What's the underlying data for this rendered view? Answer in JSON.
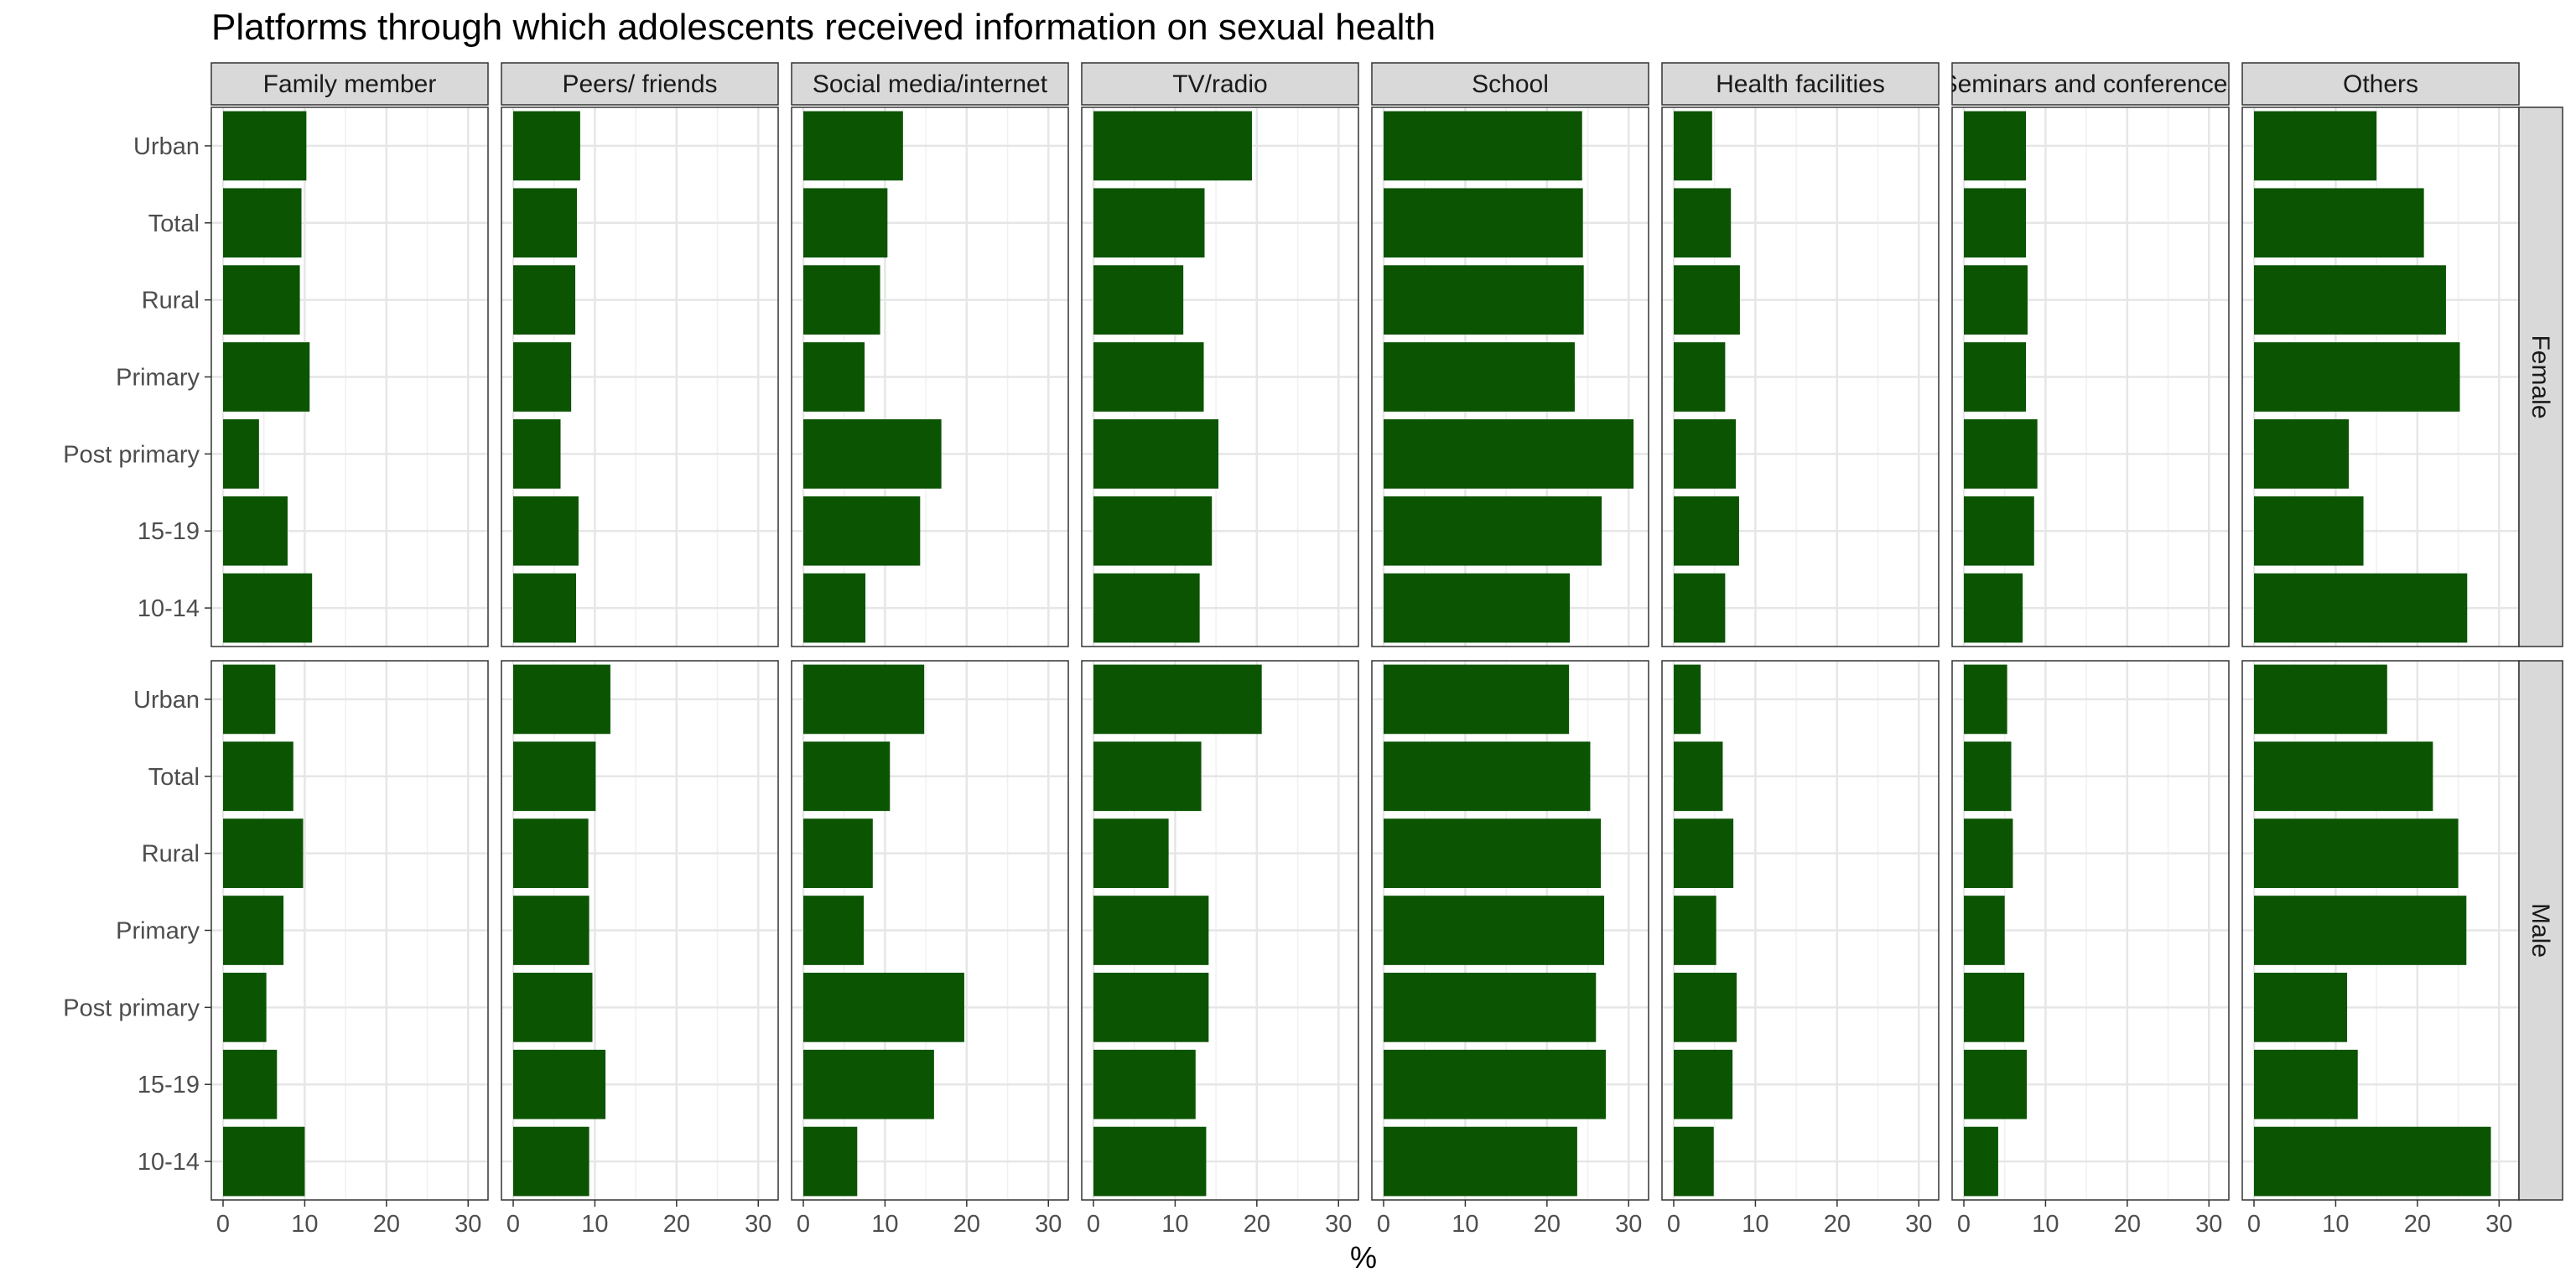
{
  "chart_data": {
    "type": "bar",
    "orientation": "horizontal",
    "title": "Platforms through which adolescents received information on sexual health",
    "xlabel": "%",
    "ylabel": "",
    "xlim": [
      0,
      31
    ],
    "x_ticks": [
      0,
      10,
      20,
      30
    ],
    "grid": true,
    "bar_color": "#0b5402",
    "strip_fill": "#d9d9d9",
    "panels": [
      "Family member",
      "Peers/ friends",
      "Social media/internet",
      "TV/radio",
      "School",
      "Health facilities",
      "Seminars and conferences",
      "Others"
    ],
    "rows": [
      "Female",
      "Male"
    ],
    "categories": [
      "Urban",
      "Total",
      "Rural",
      "Primary",
      "Post primary",
      "15-19",
      "10-14"
    ],
    "values": {
      "Female": {
        "Family member": [
          10.2,
          9.6,
          9.4,
          10.6,
          4.4,
          7.9,
          10.9
        ],
        "Peers/ friends": [
          8.2,
          7.8,
          7.6,
          7.1,
          5.8,
          8.0,
          7.7
        ],
        "Social media/internet": [
          12.2,
          10.3,
          9.4,
          7.5,
          16.9,
          14.3,
          7.6
        ],
        "TV/radio": [
          19.4,
          13.6,
          11.0,
          13.5,
          15.3,
          14.5,
          13.0
        ],
        "School": [
          24.3,
          24.4,
          24.5,
          23.4,
          30.6,
          26.7,
          22.8
        ],
        "Health facilities": [
          4.7,
          7.0,
          8.1,
          6.3,
          7.6,
          8.0,
          6.3
        ],
        "Seminars and conferences": [
          7.6,
          7.6,
          7.8,
          7.6,
          9.0,
          8.6,
          7.2
        ],
        "Others": [
          15.0,
          20.8,
          23.5,
          25.2,
          11.6,
          13.4,
          26.1
        ]
      },
      "Male": {
        "Family member": [
          6.4,
          8.6,
          9.8,
          7.4,
          5.3,
          6.6,
          10.0
        ],
        "Peers/ friends": [
          11.9,
          10.1,
          9.2,
          9.3,
          9.7,
          11.3,
          9.3
        ],
        "Social media/internet": [
          14.8,
          10.6,
          8.5,
          7.4,
          19.7,
          16.0,
          6.6
        ],
        "TV/radio": [
          20.6,
          13.2,
          9.2,
          14.1,
          14.1,
          12.5,
          13.8
        ],
        "School": [
          22.7,
          25.3,
          26.6,
          27.0,
          26.0,
          27.2,
          23.7
        ],
        "Health facilities": [
          3.3,
          6.0,
          7.3,
          5.2,
          7.7,
          7.2,
          4.9
        ],
        "Seminars and conferences": [
          5.3,
          5.8,
          6.0,
          5.0,
          7.4,
          7.7,
          4.2
        ],
        "Others": [
          16.3,
          21.9,
          25.0,
          26.0,
          11.4,
          12.7,
          29.0
        ]
      }
    }
  }
}
